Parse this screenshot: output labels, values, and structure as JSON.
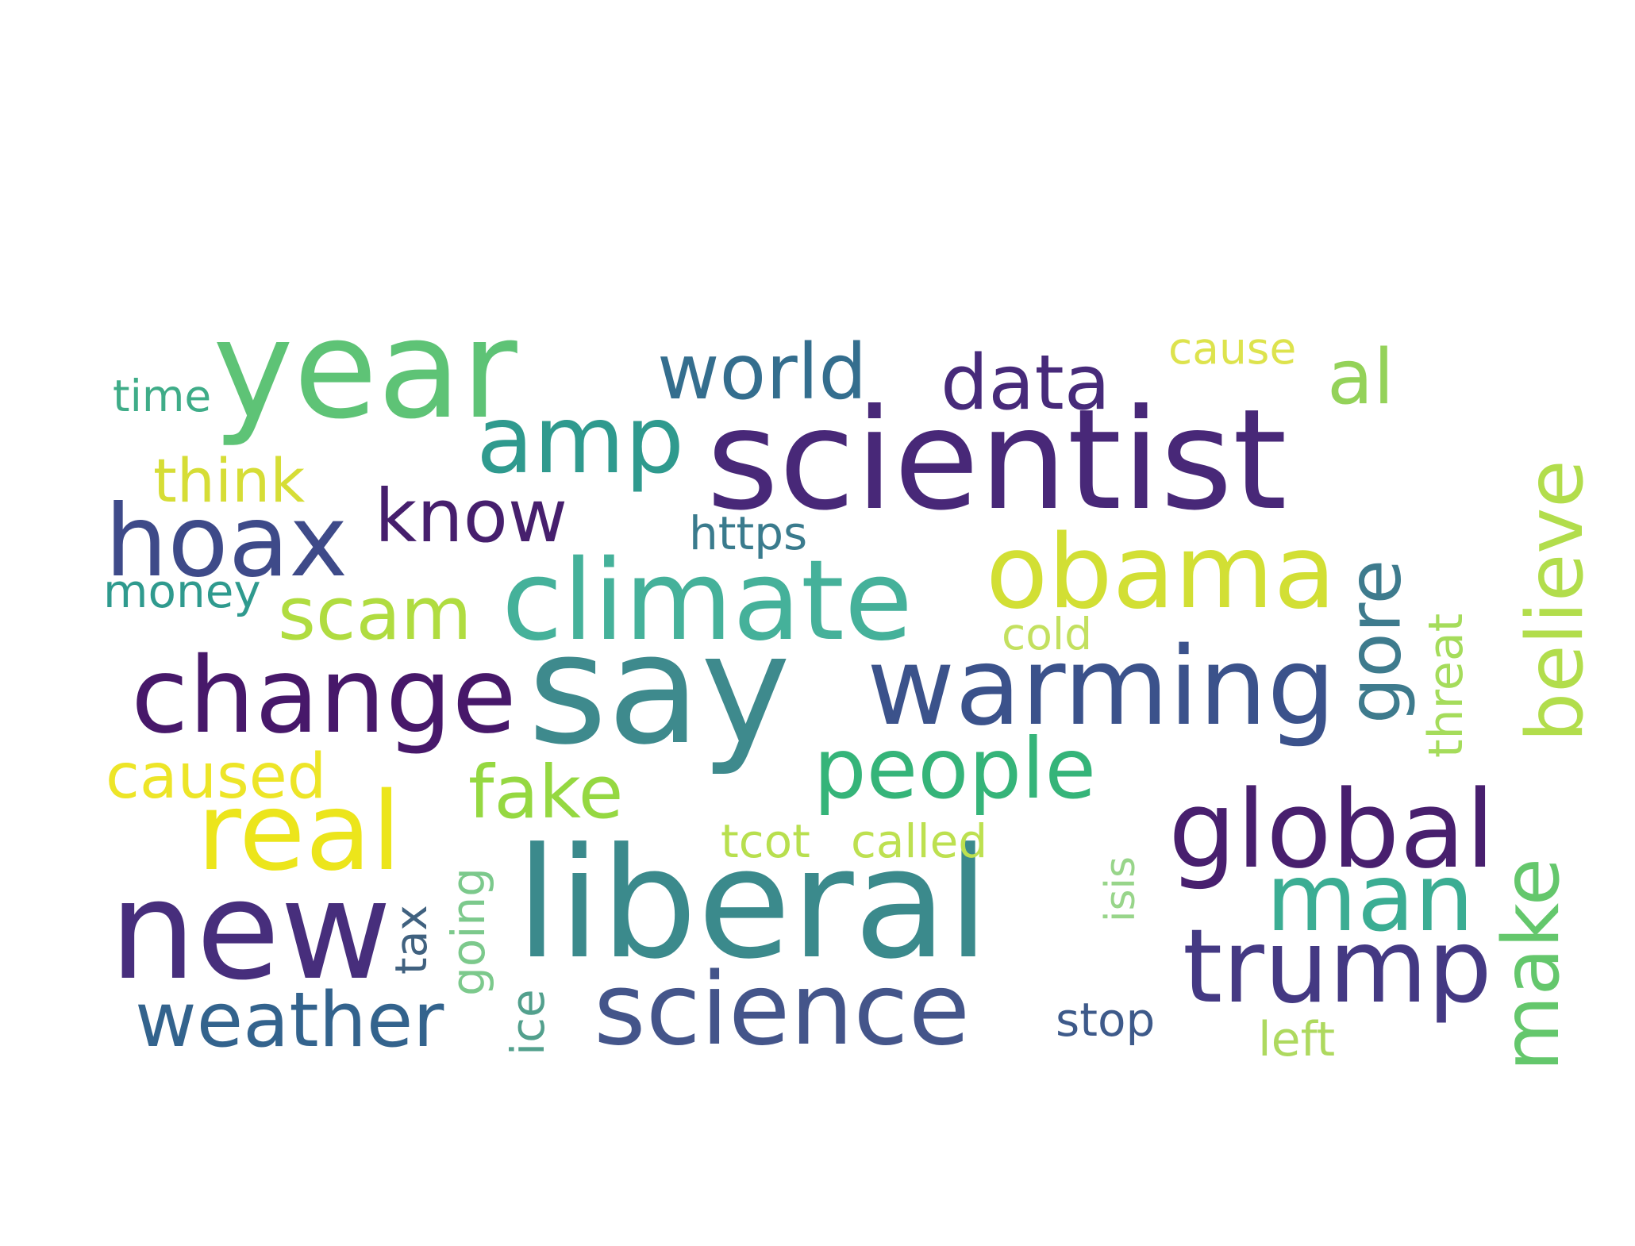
{
  "words": [
    {
      "text": "scientist",
      "color": "#482878"
    },
    {
      "text": "liberal",
      "color": "#3b8a8c"
    },
    {
      "text": "say",
      "color": "#3e8a8d"
    },
    {
      "text": "year",
      "color": "#5ec376"
    },
    {
      "text": "new",
      "color": "#472e7c"
    },
    {
      "text": "climate",
      "color": "#45b19a"
    },
    {
      "text": "warming",
      "color": "#3b528b"
    },
    {
      "text": "change",
      "color": "#47186a"
    },
    {
      "text": "global",
      "color": "#481f6e"
    },
    {
      "text": "obama",
      "color": "#d2df34"
    },
    {
      "text": "science",
      "color": "#44558a"
    },
    {
      "text": "trump",
      "color": "#443983"
    },
    {
      "text": "hoax",
      "color": "#3e4a89"
    },
    {
      "text": "real",
      "color": "#ece51b"
    },
    {
      "text": "amp",
      "color": "#2f9a8e"
    },
    {
      "text": "man",
      "color": "#3bad93"
    },
    {
      "text": "weather",
      "color": "#33638d"
    },
    {
      "text": "people",
      "color": "#35b479"
    },
    {
      "text": "world",
      "color": "#346e8e"
    },
    {
      "text": "data",
      "color": "#472a7a"
    },
    {
      "text": "know",
      "color": "#461f6d"
    },
    {
      "text": "scam",
      "color": "#b0dc40"
    },
    {
      "text": "fake",
      "color": "#95d841"
    },
    {
      "text": "make",
      "color": "#64c76c"
    },
    {
      "text": "believe",
      "color": "#b2dd4c"
    },
    {
      "text": "gore",
      "color": "#3e7b8d"
    },
    {
      "text": "think",
      "color": "#d6dd36"
    },
    {
      "text": "caused",
      "color": "#ede528"
    },
    {
      "text": "al",
      "color": "#94d259"
    },
    {
      "text": "stop",
      "color": "#3e5a8a"
    },
    {
      "text": "https",
      "color": "#3a7b8d"
    },
    {
      "text": "money",
      "color": "#2f9a8e"
    },
    {
      "text": "cause",
      "color": "#dde34d"
    },
    {
      "text": "time",
      "color": "#3fac88"
    },
    {
      "text": "called",
      "color": "#bde050"
    },
    {
      "text": "tcot",
      "color": "#b8df4e"
    },
    {
      "text": "threat",
      "color": "#a5dc5b"
    },
    {
      "text": "left",
      "color": "#aed95f"
    },
    {
      "text": "isis",
      "color": "#98d58a"
    },
    {
      "text": "going",
      "color": "#7cc98c"
    },
    {
      "text": "ice",
      "color": "#53a08d"
    },
    {
      "text": "tax",
      "color": "#40617f"
    },
    {
      "text": "cold",
      "color": "#c3e05f"
    }
  ]
}
